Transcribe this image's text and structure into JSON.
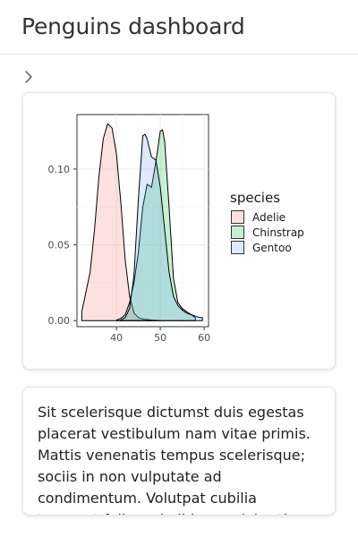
{
  "header": {
    "title": "Penguins dashboard"
  },
  "sidebar_toggle": {
    "icon": "chevron-right-icon"
  },
  "chart_data": {
    "type": "area",
    "title": "",
    "xlabel": "",
    "ylabel": "",
    "xlim": [
      31,
      61
    ],
    "ylim": [
      -0.004,
      0.136
    ],
    "x_ticks": [
      40,
      50,
      60
    ],
    "y_ticks": [
      0.0,
      0.05,
      0.1
    ],
    "y_tick_labels": [
      "0.00",
      "0.05",
      "0.10"
    ],
    "grid": true,
    "legend": {
      "title": "species",
      "position": "right"
    },
    "series": [
      {
        "name": "Adelie",
        "fill": "#F8766D",
        "x": [
          32.1,
          34,
          35,
          36,
          37,
          38,
          39,
          40,
          41,
          42,
          43,
          44,
          45,
          46,
          47,
          48,
          49,
          50
        ],
        "y": [
          0.006,
          0.032,
          0.06,
          0.095,
          0.12,
          0.13,
          0.127,
          0.11,
          0.078,
          0.04,
          0.016,
          0.005,
          0.002,
          0.001,
          0.0007,
          0.0004,
          0.0002,
          0.0001
        ]
      },
      {
        "name": "Chinstrap",
        "fill": "#00BA38",
        "x": [
          40,
          41,
          42,
          43,
          44,
          45,
          46,
          47,
          48,
          49,
          50,
          50.5,
          51,
          52,
          53,
          54,
          55,
          56,
          57,
          58
        ],
        "y": [
          0.0003,
          0.0015,
          0.004,
          0.012,
          0.025,
          0.045,
          0.075,
          0.09,
          0.088,
          0.105,
          0.125,
          0.126,
          0.118,
          0.075,
          0.028,
          0.012,
          0.008,
          0.006,
          0.004,
          0.002
        ]
      },
      {
        "name": "Gentoo",
        "fill": "#619CFF",
        "x": [
          41,
          42,
          43,
          44,
          45,
          46,
          46.5,
          47,
          48,
          49,
          50,
          51,
          52,
          53,
          54,
          55,
          56,
          57,
          58,
          59,
          59.6
        ],
        "y": [
          0.0005,
          0.002,
          0.008,
          0.03,
          0.08,
          0.122,
          0.123,
          0.12,
          0.108,
          0.106,
          0.088,
          0.06,
          0.032,
          0.016,
          0.01,
          0.007,
          0.005,
          0.004,
          0.003,
          0.002,
          0.002
        ]
      }
    ]
  },
  "text_card": {
    "body": "Sit scelerisque dictumst duis egestas placerat vestibulum nam vitae primis. Mattis venenatis tempus scelerisque; sociis in non vulputate ad condimentum. Volutpat cubilia torquent felis orci nibh urna lobortis sapien curabitur."
  }
}
